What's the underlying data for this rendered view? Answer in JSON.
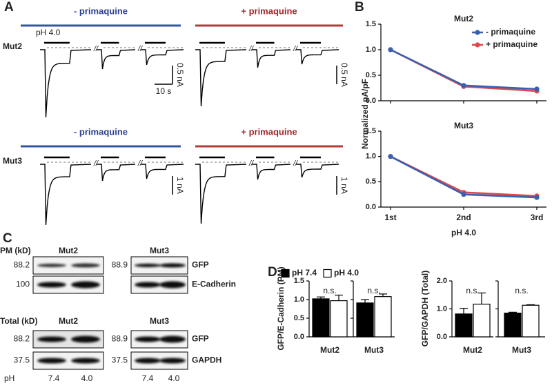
{
  "panel_labels": [
    "A",
    "B",
    "C",
    "D"
  ],
  "traces": {
    "stimulus": "pH 4.0",
    "time_scale": "10 s",
    "rows": [
      {
        "name": "Mut2",
        "conditions": [
          "- primaquine",
          "+ primaquine"
        ],
        "current_scales": [
          "0.5 nA",
          "0.5 nA"
        ]
      },
      {
        "name": "Mut3",
        "conditions": [
          "- primaquine",
          "+ primaquine"
        ],
        "current_scales": [
          "1 nA",
          "1 nA"
        ]
      }
    ]
  },
  "blots": {
    "sections": [
      {
        "header": "PM (kD)",
        "proteins": [
          "GFP",
          "E-Cadherin"
        ],
        "panels": [
          {
            "name": "Mut2",
            "markers": [
              "88.2",
              "100"
            ]
          },
          {
            "name": "Mut3",
            "markers": [
              "88.9"
            ]
          }
        ]
      },
      {
        "header": "Total (kD)",
        "proteins": [
          "GFP",
          "GAPDH"
        ],
        "panels": [
          {
            "name": "Mut2",
            "markers": [
              "88.2",
              "37.5"
            ]
          },
          {
            "name": "Mut3",
            "markers": [
              "88.9",
              "37.5"
            ]
          }
        ]
      }
    ],
    "ph_label": "pH",
    "ph_values": [
      "7.4",
      "4.0",
      "7.4",
      "4.0"
    ]
  },
  "chart_data": [
    {
      "type": "line",
      "title": "Mut2",
      "categories": [
        null,
        null,
        null
      ],
      "ylabel": "Normalized pA/pF",
      "series": [
        {
          "name": "- primaquine",
          "color": "#3a5fb0",
          "values": [
            1.0,
            0.3,
            0.23
          ]
        },
        {
          "name": "+ primaquine",
          "color": "#e0474c",
          "values": [
            1.0,
            0.28,
            0.19
          ]
        }
      ],
      "ylim": [
        0,
        1.5
      ],
      "yticks": [
        {
          "value": 0,
          "label": "0.0"
        },
        {
          "value": 0.5,
          "label": "0.5"
        },
        {
          "value": 1,
          "label": "1.0"
        },
        {
          "value": 1.5,
          "label": "1.5"
        }
      ],
      "legend": "upper right"
    },
    {
      "type": "line",
      "title": "Mut3",
      "categories": [
        "1st",
        "2nd",
        "3rd"
      ],
      "xlabel": "pH 4.0",
      "series": [
        {
          "color": "#3a5fb0",
          "values": [
            1.0,
            0.25,
            0.19
          ]
        },
        {
          "color": "#e0474c",
          "values": [
            1.0,
            0.29,
            0.22
          ]
        }
      ],
      "ylim": [
        0,
        1.5
      ],
      "yticks": [
        {
          "value": 0,
          "label": "0.0"
        },
        {
          "value": 0.5,
          "label": "0.5"
        },
        {
          "value": 1,
          "label": "1.0"
        },
        {
          "value": 1.5,
          "label": "1.5"
        }
      ]
    },
    {
      "type": "bar",
      "categories": [
        "Mut2"
      ],
      "annotation": "n.s.",
      "ylabel": "GFP/E-Cadherin (PM)",
      "series": [
        {
          "name": "pH 7.4",
          "color": "#000000",
          "values": [
            1.02
          ],
          "errors": [
            0.05
          ]
        },
        {
          "name": "pH 4.0",
          "color": "#ffffff",
          "values": [
            0.97
          ],
          "errors": [
            0.15
          ]
        }
      ],
      "ylim": [
        0,
        1.5
      ],
      "yticks": [
        {
          "value": 0,
          "label": "0.0"
        },
        {
          "value": 0.5,
          "label": "0.5"
        },
        {
          "value": 1,
          "label": "1.0"
        },
        {
          "value": 1.5,
          "label": "1.5"
        }
      ],
      "legend": "top"
    },
    {
      "type": "bar",
      "categories": [
        "Mut3"
      ],
      "annotation": "n.s.",
      "series": [
        {
          "color": "#000000",
          "values": [
            0.91
          ],
          "errors": [
            0.09
          ]
        },
        {
          "color": "#ffffff",
          "values": [
            1.08
          ],
          "errors": [
            0.07
          ]
        }
      ],
      "ylim": [
        0,
        1.5
      ],
      "yticks": [
        0,
        0.5,
        1,
        1.5
      ],
      "ytick_labels": false
    },
    {
      "type": "bar",
      "categories": [
        "Mut2"
      ],
      "annotation": "n.s.",
      "ylabel": "GFP/GAPDH (Total)",
      "series": [
        {
          "color": "#000000",
          "values": [
            0.82
          ],
          "errors": [
            0.2
          ]
        },
        {
          "color": "#ffffff",
          "values": [
            1.17
          ],
          "errors": [
            0.4
          ]
        }
      ],
      "ylim": [
        0,
        2
      ],
      "yticks": [
        {
          "value": 0,
          "label": "0.0"
        },
        {
          "value": 1,
          "label": "1.0"
        },
        {
          "value": 2,
          "label": "2.0"
        }
      ]
    },
    {
      "type": "bar",
      "categories": [
        "Mut3"
      ],
      "annotation": "n.s.",
      "series": [
        {
          "color": "#000000",
          "values": [
            0.85
          ],
          "errors": [
            0.03
          ]
        },
        {
          "color": "#ffffff",
          "values": [
            1.13
          ],
          "errors": [
            0.02
          ]
        }
      ],
      "ylim": [
        0,
        2
      ],
      "yticks": [
        0,
        1,
        2
      ],
      "ytick_labels": false
    }
  ]
}
